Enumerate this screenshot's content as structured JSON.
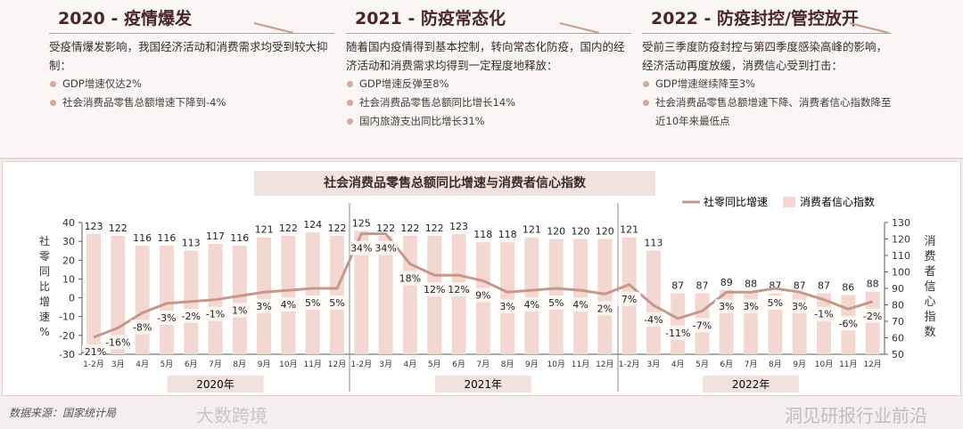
{
  "panels": [
    {
      "title": "2020 - 疫情爆发",
      "desc": "受疫情爆发影响，我国经济活动和消费需求均受到较大抑制：",
      "bullets": [
        "GDP增速仅达2%",
        "社会消费品零售总额增速下降到-4%"
      ]
    },
    {
      "title": "2021 - 防疫常态化",
      "desc": "随着国内疫情得到基本控制，转向常态化防疫，国内的经济活动和消费需求均得到一定程度地释放：",
      "bullets": [
        "GDP增速反弹至8%",
        "社会消费品零售总额同比增长14%",
        "国内旅游支出同比增长31%"
      ]
    },
    {
      "title": "2022 - 防疫封控/管控放开",
      "desc": "受前三季度防疫封控与第四季度感染高峰的影响，经济活动再度放缓，消费信心受到打击：",
      "bullets": [
        "GDP增速继续降至3%",
        "社会消费品零售总额增速下降、消费者信心指数降至近10年来最低点"
      ]
    }
  ],
  "source": "数据来源：国家统计局",
  "watermark": "洞见研报行业前沿",
  "watermark2": "大数跨境",
  "colors": {
    "bar": "#f2d8d0",
    "line": "#c8978b"
  },
  "chart_data": {
    "type": "bar+line",
    "title": "社会消费品零售总额同比增速与消费者信心指数",
    "legend": [
      "社零同比增速",
      "消费者信心指数"
    ],
    "legend_position": "top-right",
    "ylabel": "社零同比增速%",
    "y2label": "消费者信心指数",
    "ylim": [
      -30,
      40
    ],
    "yticks": [
      40,
      30,
      20,
      10,
      0,
      -10,
      -20,
      -30
    ],
    "y2lim": [
      50,
      130
    ],
    "y2ticks": [
      130,
      120,
      110,
      100,
      90,
      80,
      70,
      60,
      50
    ],
    "groups": [
      "2020年",
      "2021年",
      "2022年"
    ],
    "months": [
      "1-2月",
      "3月",
      "4月",
      "5月",
      "6月",
      "7月",
      "8月",
      "9月",
      "10月",
      "11月",
      "12月"
    ],
    "growth": [
      [
        -21,
        -16,
        -8,
        -3,
        -2,
        -1,
        1,
        3,
        4,
        5,
        5
      ],
      [
        34,
        34,
        18,
        12,
        12,
        9,
        3,
        4,
        5,
        4,
        2
      ],
      [
        7,
        -4,
        -11,
        -7,
        3,
        3,
        5,
        3,
        -1,
        -6,
        -2
      ]
    ],
    "confidence": [
      [
        123,
        122,
        116,
        116,
        113,
        117,
        116,
        121,
        122,
        124,
        122
      ],
      [
        125,
        122,
        122,
        122,
        123,
        118,
        118,
        121,
        120,
        120,
        120
      ],
      [
        121,
        113,
        87,
        87,
        89,
        88,
        87,
        87,
        87,
        86,
        88
      ]
    ]
  }
}
